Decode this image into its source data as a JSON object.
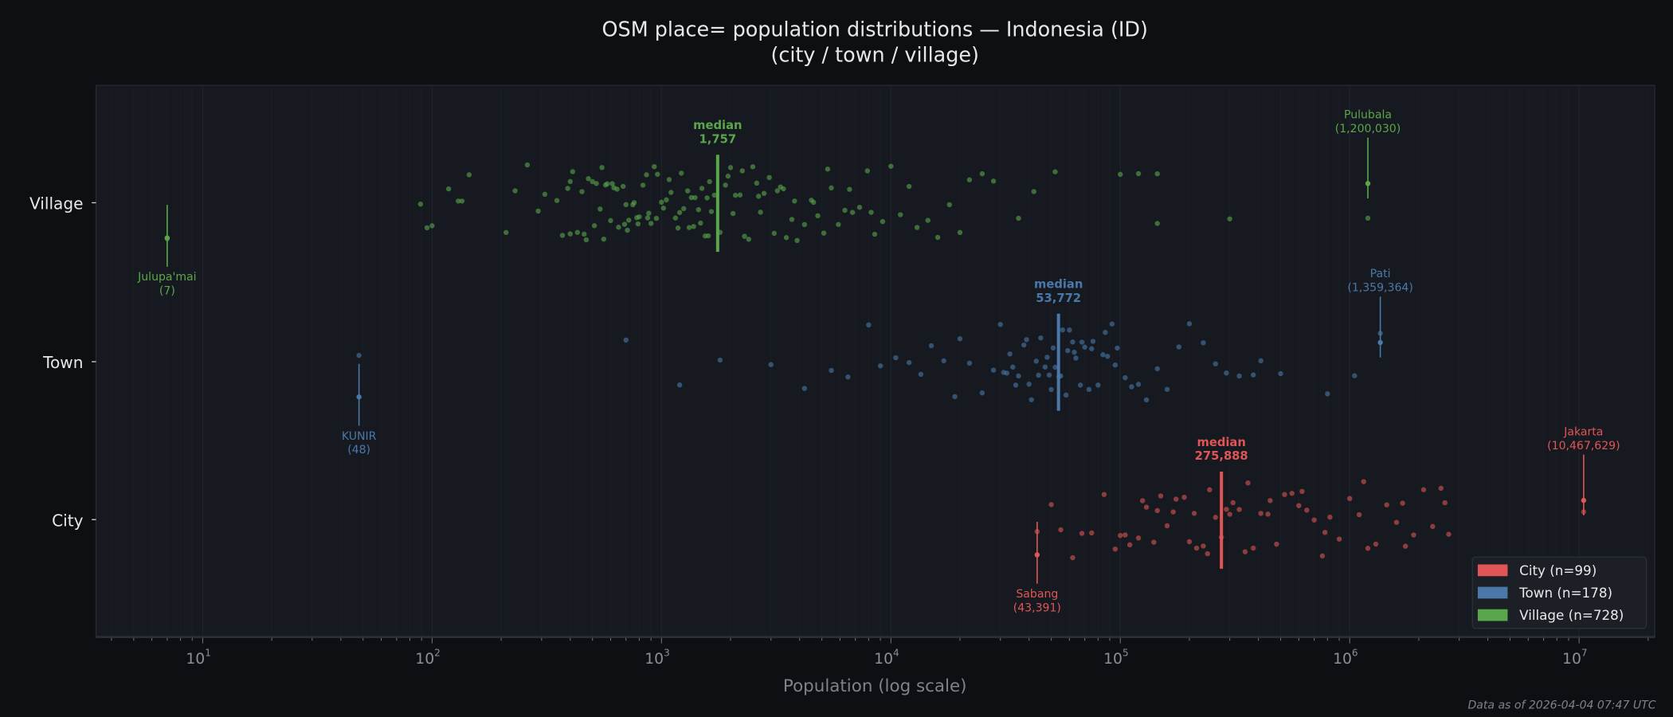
{
  "chart_data": {
    "type": "scatter",
    "title": "OSM place= population distributions — Indonesia (ID)",
    "subtitle": "(city / town / village)",
    "xlabel": "Population (log scale)",
    "xscale": "log",
    "xlim": [
      3.4,
      21400000
    ],
    "xticks": [
      {
        "base": "10",
        "exp": "1"
      },
      {
        "base": "10",
        "exp": "2"
      },
      {
        "base": "10",
        "exp": "3"
      },
      {
        "base": "10",
        "exp": "4"
      },
      {
        "base": "10",
        "exp": "5"
      },
      {
        "base": "10",
        "exp": "6"
      },
      {
        "base": "10",
        "exp": "7"
      }
    ],
    "categories": [
      "Village",
      "Town",
      "City"
    ],
    "grid": "vertical minor lines",
    "legend_placement": "bottom-right",
    "footnote": "Data as of 2026-04-04 07:47 UTC",
    "series": [
      {
        "name": "City",
        "legend": "City  (n=99)",
        "n": 99,
        "color": "#e05555",
        "median": 275888,
        "median_label": "median",
        "median_value": "275,888",
        "min": {
          "name": "Sabang",
          "value": 43391,
          "label": "(43,391)"
        },
        "max": {
          "name": "Jakarta",
          "value": 10467629,
          "label": "(10,467,629)"
        },
        "values": [
          43391,
          50000,
          55000,
          62000,
          68000,
          75000,
          85000,
          95000,
          100000,
          110000,
          120000,
          130000,
          140000,
          150000,
          160000,
          175000,
          190000,
          200000,
          215000,
          230000,
          245000,
          260000,
          275888,
          290000,
          310000,
          330000,
          350000,
          380000,
          410000,
          440000,
          480000,
          520000,
          560000,
          600000,
          650000,
          700000,
          760000,
          820000,
          900000,
          1000000,
          1100000,
          1200000,
          1300000,
          1450000,
          1600000,
          1750000,
          1900000,
          2100000,
          2300000,
          2500000,
          2700000,
          10467629,
          105000,
          125000,
          145000,
          170000,
          210000,
          240000,
          300000,
          360000,
          450000,
          620000,
          780000,
          1150000,
          1700000,
          2600000
        ]
      },
      {
        "name": "Town",
        "legend": "Town  (n=178)",
        "n": 178,
        "color": "#4a78a8",
        "median": 53772,
        "median_label": "median",
        "median_value": "53,772",
        "min": {
          "name": "KUNIR",
          "value": 48,
          "label": "(48)"
        },
        "max": {
          "name": "Pati",
          "value": 1359364,
          "label": "(1,359,364)"
        },
        "values": [
          48,
          700,
          1200,
          1800,
          3000,
          4200,
          5500,
          6500,
          8000,
          9000,
          10500,
          12000,
          13500,
          15000,
          17000,
          19000,
          20000,
          22000,
          25000,
          28000,
          30000,
          31000,
          32000,
          33000,
          35000,
          36000,
          38000,
          40000,
          41000,
          43000,
          45000,
          47000,
          49000,
          50000,
          52000,
          54000,
          56000,
          58000,
          60000,
          62000,
          64000,
          67000,
          70000,
          73000,
          76000,
          80000,
          84000,
          88000,
          92000,
          97000,
          105000,
          112000,
          120000,
          130000,
          145000,
          160000,
          180000,
          200000,
          230000,
          260000,
          290000,
          330000,
          380000,
          410000,
          500000,
          800000,
          1050000,
          1359364,
          34000,
          39000,
          44000,
          48000,
          51000,
          55000,
          59000,
          63000,
          68000,
          75000,
          86000,
          95000
        ]
      },
      {
        "name": "Village",
        "legend": "Village  (n=728)",
        "n": 728,
        "color": "#5aa64b",
        "median": 1757,
        "median_label": "median",
        "median_value": "1,757",
        "min": {
          "name": "Julupa'mai",
          "value": 7,
          "label": "(7)"
        },
        "max": {
          "name": "Pulubala",
          "value": 1200030,
          "label": "(1,200,030)"
        },
        "values": [
          7,
          1200030,
          89,
          95,
          100,
          118,
          130,
          135,
          145,
          210,
          230,
          260,
          290,
          310,
          52000,
          100000,
          120000,
          145000,
          145000,
          300000,
          36000,
          42000,
          28000,
          350,
          370,
          390,
          410,
          430,
          450,
          470,
          500,
          520,
          540,
          560,
          580,
          600,
          620,
          650,
          680,
          700,
          720,
          750,
          780,
          800,
          830,
          860,
          900,
          930,
          960,
          1000,
          1050,
          1100,
          1150,
          1200,
          1250,
          1300,
          1350,
          1400,
          1450,
          1500,
          1550,
          1600,
          1650,
          1700,
          1800,
          1900,
          2000,
          2100,
          2200,
          2300,
          2400,
          2500,
          2650,
          2800,
          2950,
          3100,
          3300,
          3500,
          3700,
          3900,
          4200,
          4500,
          4800,
          5100,
          5500,
          5900,
          6300,
          6800,
          7300,
          7900,
          8500,
          9200,
          10000,
          11000,
          12000,
          13000,
          14500,
          16000,
          18000,
          20000,
          22000,
          25000,
          400,
          460,
          510,
          570,
          640,
          710,
          790,
          870,
          950,
          1080,
          1180,
          1320,
          1480,
          1620,
          1950,
          2250,
          2600,
          3200,
          3800,
          4600,
          5300,
          6600,
          8200,
          400,
          480,
          550,
          610,
          690,
          760,
          880,
          1020,
          1220,
          1380,
          1580,
          2050,
          2700,
          3400
        ]
      }
    ]
  }
}
